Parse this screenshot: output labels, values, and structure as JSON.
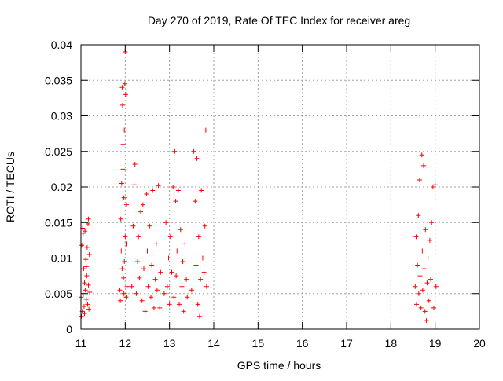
{
  "chart_data": {
    "type": "scatter",
    "title": "Day 270 of 2019, Rate Of TEC Index for receiver areg",
    "xlabel": "GPS time / hours",
    "ylabel": "ROTI / TECUs",
    "xlim": [
      11,
      20
    ],
    "ylim": [
      0,
      0.04
    ],
    "xticks": [
      11,
      12,
      13,
      14,
      15,
      16,
      17,
      18,
      19,
      20
    ],
    "xtick_labels": [
      "11",
      "12",
      "13",
      "14",
      "15",
      "16",
      "17",
      "18",
      "19",
      "20"
    ],
    "yticks": [
      0,
      0.005,
      0.01,
      0.015,
      0.02,
      0.025,
      0.03,
      0.035,
      0.04
    ],
    "ytick_labels": [
      "0",
      "0.005",
      "0.01",
      "0.015",
      "0.02",
      "0.025",
      "0.03",
      "0.035",
      "0.04"
    ],
    "grid": true,
    "marker": "+",
    "color": "#ff0000",
    "series": [
      {
        "name": "ROTI",
        "points": [
          [
            11.0,
            0.0045
          ],
          [
            11.02,
            0.0118
          ],
          [
            11.03,
            0.0025
          ],
          [
            11.04,
            0.0142
          ],
          [
            11.05,
            0.0048
          ],
          [
            11.06,
            0.0085
          ],
          [
            11.07,
            0.0032
          ],
          [
            11.08,
            0.0065
          ],
          [
            11.09,
            0.0138
          ],
          [
            11.1,
            0.0055
          ],
          [
            11.11,
            0.0098
          ],
          [
            11.12,
            0.0042
          ],
          [
            11.13,
            0.0075
          ],
          [
            11.14,
            0.0115
          ],
          [
            11.15,
            0.0035
          ],
          [
            11.16,
            0.0148
          ],
          [
            11.17,
            0.0062
          ],
          [
            11.18,
            0.0028
          ],
          [
            11.19,
            0.0105
          ],
          [
            11.2,
            0.0052
          ],
          [
            11.01,
            0.0018
          ],
          [
            11.08,
            0.0022
          ],
          [
            11.12,
            0.0088
          ],
          [
            11.05,
            0.0135
          ],
          [
            11.17,
            0.0155
          ],
          [
            11.88,
            0.0055
          ],
          [
            11.9,
            0.0155
          ],
          [
            11.92,
            0.0205
          ],
          [
            11.93,
            0.034
          ],
          [
            11.94,
            0.0315
          ],
          [
            11.95,
            0.026
          ],
          [
            11.96,
            0.0072
          ],
          [
            11.97,
            0.0185
          ],
          [
            11.98,
            0.0095
          ],
          [
            11.99,
            0.0345
          ],
          [
            12.0,
            0.039
          ],
          [
            12.01,
            0.033
          ],
          [
            12.02,
            0.0045
          ],
          [
            12.03,
            0.0175
          ],
          [
            12.04,
            0.006
          ],
          [
            11.91,
            0.011
          ],
          [
            11.95,
            0.0225
          ],
          [
            11.98,
            0.028
          ],
          [
            12.0,
            0.013
          ],
          [
            11.93,
            0.0085
          ],
          [
            11.97,
            0.005
          ],
          [
            12.02,
            0.012
          ],
          [
            11.89,
            0.004
          ],
          [
            12.15,
            0.006
          ],
          [
            12.18,
            0.0145
          ],
          [
            12.2,
            0.0203
          ],
          [
            12.22,
            0.0232
          ],
          [
            12.25,
            0.005
          ],
          [
            12.28,
            0.0095
          ],
          [
            12.3,
            0.013
          ],
          [
            12.32,
            0.0072
          ],
          [
            12.35,
            0.0165
          ],
          [
            12.38,
            0.004
          ],
          [
            12.4,
            0.0175
          ],
          [
            12.42,
            0.0085
          ],
          [
            12.45,
            0.0025
          ],
          [
            12.48,
            0.019
          ],
          [
            12.5,
            0.011
          ],
          [
            12.52,
            0.006
          ],
          [
            12.55,
            0.0145
          ],
          [
            12.58,
            0.0045
          ],
          [
            12.6,
            0.009
          ],
          [
            12.62,
            0.0195
          ],
          [
            12.65,
            0.003
          ],
          [
            12.68,
            0.007
          ],
          [
            12.7,
            0.012
          ],
          [
            12.72,
            0.0055
          ],
          [
            12.75,
            0.0202
          ],
          [
            12.78,
            0.003
          ],
          [
            12.8,
            0.008
          ],
          [
            12.88,
            0.005
          ],
          [
            12.92,
            0.015
          ],
          [
            12.95,
            0.006
          ],
          [
            12.98,
            0.01
          ],
          [
            13.0,
            0.0035
          ],
          [
            13.02,
            0.013
          ],
          [
            13.05,
            0.008
          ],
          [
            13.08,
            0.02
          ],
          [
            13.1,
            0.0045
          ],
          [
            13.12,
            0.025
          ],
          [
            13.14,
            0.018
          ],
          [
            13.15,
            0.0075
          ],
          [
            13.17,
            0.011
          ],
          [
            13.2,
            0.0195
          ],
          [
            13.22,
            0.0035
          ],
          [
            13.25,
            0.014
          ],
          [
            13.28,
            0.006
          ],
          [
            13.3,
            0.0095
          ],
          [
            13.32,
            0.0025
          ],
          [
            13.35,
            0.012
          ],
          [
            13.38,
            0.007
          ],
          [
            13.4,
            0.0045
          ],
          [
            13.5,
            0.0055
          ],
          [
            13.55,
            0.025
          ],
          [
            13.58,
            0.018
          ],
          [
            13.6,
            0.009
          ],
          [
            13.62,
            0.024
          ],
          [
            13.64,
            0.0035
          ],
          [
            13.66,
            0.013
          ],
          [
            13.68,
            0.0018
          ],
          [
            13.7,
            0.007
          ],
          [
            13.72,
            0.0195
          ],
          [
            13.75,
            0.01
          ],
          [
            13.78,
            0.008
          ],
          [
            13.8,
            0.0145
          ],
          [
            13.82,
            0.028
          ],
          [
            13.84,
            0.006
          ],
          [
            18.55,
            0.006
          ],
          [
            18.57,
            0.013
          ],
          [
            18.58,
            0.0035
          ],
          [
            18.6,
            0.009
          ],
          [
            18.62,
            0.016
          ],
          [
            18.63,
            0.005
          ],
          [
            18.65,
            0.021
          ],
          [
            18.66,
            0.0075
          ],
          [
            18.68,
            0.003
          ],
          [
            18.7,
            0.0245
          ],
          [
            18.71,
            0.011
          ],
          [
            18.72,
            0.0055
          ],
          [
            18.74,
            0.023
          ],
          [
            18.75,
            0.0085
          ],
          [
            18.77,
            0.0025
          ],
          [
            18.78,
            0.014
          ],
          [
            18.8,
            0.0012
          ],
          [
            18.82,
            0.0065
          ],
          [
            18.84,
            0.01
          ],
          [
            18.86,
            0.004
          ],
          [
            18.88,
            0.0125
          ],
          [
            18.9,
            0.007
          ],
          [
            18.92,
            0.015
          ],
          [
            18.95,
            0.02
          ],
          [
            18.97,
            0.003
          ],
          [
            19.0,
            0.0203
          ],
          [
            19.02,
            0.006
          ]
        ]
      }
    ]
  }
}
